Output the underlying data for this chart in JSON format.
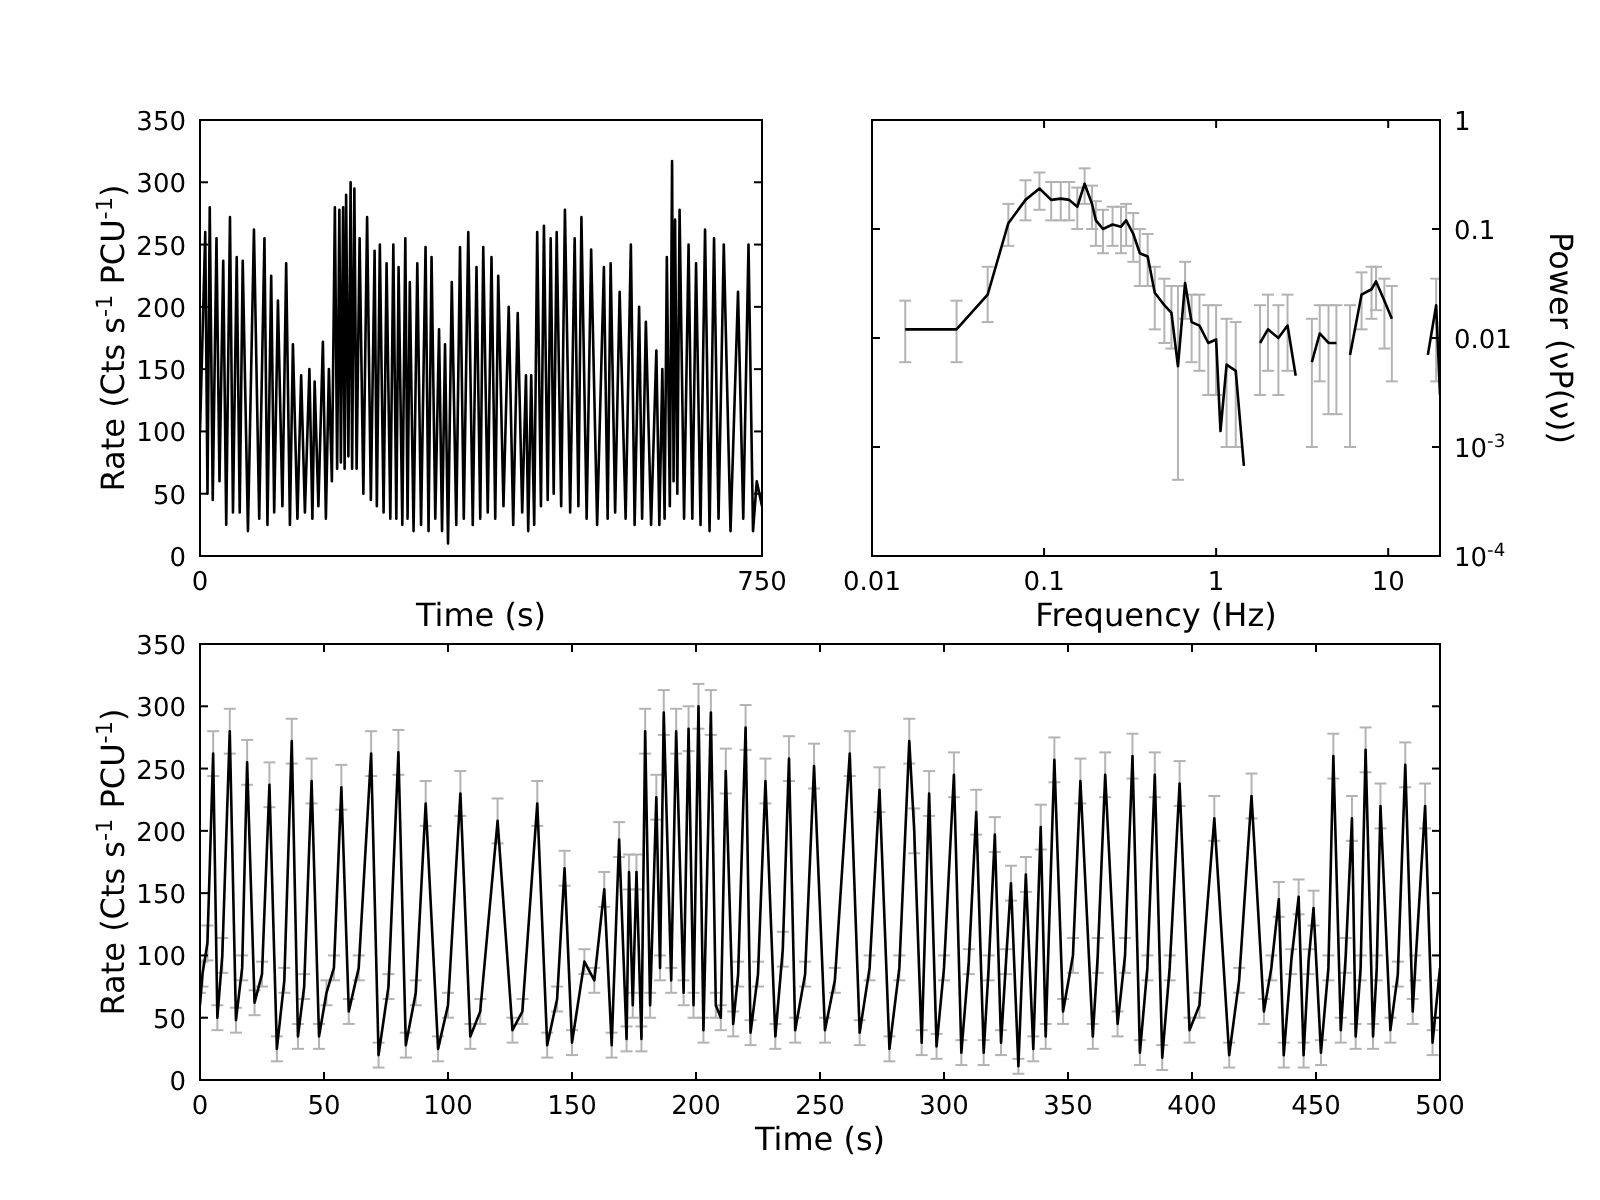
{
  "chart_data": [
    {
      "type": "line",
      "xlabel": "Time (s)",
      "ylabel": "Rate (Cts s$^{-1}$ PCU$^{-1}$)",
      "xlim": [
        0,
        750
      ],
      "ylim": [
        0,
        350
      ],
      "xticks": [
        0,
        750
      ],
      "yticks": [
        0,
        50,
        100,
        150,
        200,
        250,
        300,
        350
      ],
      "series": [
        {
          "color": "#000000",
          "x": [
            0,
            7,
            10,
            13,
            17,
            22,
            26,
            31,
            35,
            40,
            44,
            49,
            53,
            57,
            64,
            72,
            79,
            86,
            90,
            95,
            99,
            104,
            110,
            115,
            120,
            124,
            130,
            135,
            140,
            146,
            150,
            153,
            158,
            164,
            168,
            172,
            176,
            180,
            183,
            186,
            188,
            191,
            193,
            195,
            198,
            201,
            203,
            206,
            209,
            213,
            218,
            223,
            228,
            233,
            236,
            240,
            245,
            249,
            254,
            258,
            262,
            265,
            270,
            274,
            277,
            280,
            285,
            290,
            295,
            301,
            305,
            309,
            314,
            319,
            323,
            327,
            331,
            336,
            342,
            347,
            352,
            358,
            364,
            369,
            374,
            378,
            384,
            389,
            394,
            398,
            405,
            412,
            418,
            424,
            430,
            435,
            438,
            442,
            446,
            450,
            455,
            459,
            464,
            468,
            472,
            476,
            482,
            487,
            494,
            500,
            505,
            509,
            516,
            522,
            530,
            539,
            544,
            548,
            554,
            560,
            568,
            575,
            580,
            586,
            590,
            595,
            602,
            609,
            613,
            617,
            620,
            623,
            627,
            630,
            632,
            634,
            637,
            640,
            646,
            652,
            657,
            662,
            668,
            674,
            680,
            686,
            692,
            699,
            708,
            718,
            725,
            732,
            738,
            743,
            750
          ],
          "values": [
            100,
            260,
            50,
            280,
            45,
            255,
            60,
            237,
            25,
            272,
            35,
            240,
            35,
            237,
            20,
            262,
            30,
            255,
            25,
            225,
            35,
            205,
            40,
            235,
            25,
            170,
            30,
            145,
            35,
            150,
            30,
            140,
            40,
            172,
            30,
            150,
            60,
            280,
            70,
            278,
            75,
            280,
            70,
            290,
            80,
            300,
            70,
            295,
            70,
            255,
            50,
            272,
            45,
            245,
            40,
            250,
            35,
            235,
            30,
            250,
            30,
            232,
            25,
            255,
            30,
            220,
            20,
            235,
            25,
            248,
            20,
            240,
            30,
            182,
            20,
            170,
            10,
            220,
            25,
            248,
            30,
            260,
            25,
            232,
            30,
            248,
            35,
            240,
            30,
            225,
            40,
            200,
            25,
            195,
            35,
            145,
            20,
            145,
            25,
            260,
            40,
            265,
            45,
            255,
            50,
            260,
            40,
            278,
            35,
            255,
            40,
            272,
            30,
            246,
            25,
            232,
            30,
            235,
            35,
            212,
            30,
            250,
            25,
            200,
            30,
            188,
            25,
            165,
            25,
            150,
            30,
            240,
            40,
            317,
            60,
            270,
            50,
            278,
            30,
            250,
            30,
            235,
            25,
            262,
            20,
            255,
            30,
            250,
            20,
            212,
            30,
            250,
            20,
            60,
            40
          ]
        }
      ]
    },
    {
      "type": "line",
      "xlabel": "Frequency (Hz)",
      "ylabel": "Power (νP(ν))",
      "log": "xy",
      "xlim": [
        0.01,
        20
      ],
      "ylim": [
        0.0001,
        1
      ],
      "xticks": [
        0.01,
        0.1,
        1,
        10
      ],
      "yticks": [
        {
          "value": 0.0001,
          "label": "10$^{-4}$"
        },
        {
          "value": 0.001,
          "label": "10$^{-3}$"
        },
        0.01,
        0.1,
        1
      ],
      "series": [
        {
          "color": "#000000",
          "x": [
            0.0156,
            0.031,
            0.047,
            0.062,
            0.078,
            0.094,
            0.11,
            0.125,
            0.14,
            0.156,
            0.172,
            0.19,
            0.2,
            0.22,
            0.25,
            0.28,
            0.3,
            0.33,
            0.36,
            0.4,
            0.44,
            0.5,
            0.55,
            0.6,
            0.66,
            0.72,
            0.8,
            0.9,
            1.0,
            1.06,
            1.15,
            1.3,
            1.45,
            1.6,
            1.8,
            2.0,
            2.3,
            2.6,
            2.9,
            3.2,
            3.6,
            4.0,
            4.5,
            5.0,
            5.5,
            6.0,
            7.0,
            8.0,
            8.5,
            9.5,
            10.5,
            11.5,
            13,
            15,
            17,
            19,
            20
          ],
          "values": [
            0.012,
            0.012,
            0.025,
            0.113,
            0.185,
            0.235,
            0.185,
            0.19,
            0.185,
            0.16,
            0.26,
            0.17,
            0.12,
            0.1,
            0.11,
            0.105,
            0.12,
            0.09,
            0.06,
            0.056,
            0.026,
            0.02,
            0.017,
            0.0055,
            0.032,
            0.014,
            0.013,
            0.009,
            0.0097,
            0.0014,
            0.0057,
            0.005,
            0.00067,
            null,
            0.009,
            0.012,
            0.01,
            0.013,
            0.0045,
            null,
            0.006,
            0.011,
            0.009,
            0.009,
            null,
            0.007,
            0.025,
            0.028,
            0.033,
            0.022,
            0.015,
            null,
            null,
            null,
            0.007,
            0.02,
            0.003
          ],
          "errors": [
            [
              0.006,
              0.022
            ],
            [
              0.006,
              0.022
            ],
            [
              0.014,
              0.045
            ],
            [
              0.07,
              0.17
            ],
            [
              0.12,
              0.28
            ],
            [
              0.15,
              0.33
            ],
            [
              0.12,
              0.27
            ],
            [
              0.12,
              0.27
            ],
            [
              0.12,
              0.27
            ],
            [
              0.1,
              0.24
            ],
            [
              0.17,
              0.36
            ],
            [
              0.1,
              0.25
            ],
            [
              0.07,
              0.18
            ],
            [
              0.06,
              0.15
            ],
            [
              0.07,
              0.16
            ],
            [
              0.06,
              0.16
            ],
            [
              0.07,
              0.17
            ],
            [
              0.05,
              0.14
            ],
            [
              0.03,
              0.1
            ],
            [
              0.03,
              0.09
            ],
            [
              0.012,
              0.045
            ],
            [
              0.009,
              0.035
            ],
            [
              0.008,
              0.03
            ],
            [
              0.0005,
              0.03
            ],
            [
              0.015,
              0.05
            ],
            [
              0.006,
              0.025
            ],
            [
              0.005,
              0.025
            ],
            [
              0.003,
              0.02
            ],
            [
              0.003,
              0.02
            ],
            null,
            [
              0.001,
              0.015
            ],
            [
              0.001,
              0.014
            ],
            null,
            null,
            [
              0.003,
              0.02
            ],
            [
              0.005,
              0.025
            ],
            [
              0.003,
              0.02
            ],
            [
              0.005,
              0.025
            ],
            null,
            null,
            [
              0.001,
              0.015
            ],
            [
              0.004,
              0.02
            ],
            [
              0.002,
              0.02
            ],
            [
              0.002,
              0.02
            ],
            null,
            [
              0.001,
              0.02
            ],
            [
              0.012,
              0.04
            ],
            [
              0.015,
              0.045
            ],
            [
              0.018,
              0.045
            ],
            [
              0.008,
              0.035
            ],
            [
              0.004,
              0.03
            ],
            null,
            null,
            null,
            null,
            [
              0.004,
              0.035
            ],
            null
          ]
        }
      ]
    },
    {
      "type": "line",
      "xlabel": "Time (s)",
      "ylabel": "Rate (Cts s$^{-1}$ PCU$^{-1}$)",
      "xlim": [
        0,
        500
      ],
      "ylim": [
        0,
        350
      ],
      "xticks": [
        0,
        50,
        100,
        150,
        200,
        250,
        300,
        350,
        400,
        450,
        500
      ],
      "yticks": [
        0,
        50,
        100,
        150,
        200,
        250,
        300,
        350
      ],
      "series": [
        {
          "color": "#000000",
          "x": [
            0,
            1,
            3,
            5.3,
            7,
            9,
            12,
            14.5,
            17,
            19,
            22,
            25,
            28,
            31,
            34,
            37,
            39.5,
            42,
            45,
            48,
            51,
            54,
            57,
            60,
            64,
            69,
            72,
            76,
            80,
            83,
            87,
            91,
            96,
            100,
            105,
            109,
            113,
            120,
            126,
            130,
            136,
            140,
            144,
            147,
            150,
            155,
            159,
            163,
            166,
            169,
            172,
            173,
            174.5,
            176,
            178,
            179.5,
            181.5,
            184,
            185.5,
            187,
            190,
            192,
            195,
            197,
            199,
            201,
            203,
            206,
            208,
            210,
            212,
            215,
            217,
            220,
            222,
            225,
            228,
            232,
            235,
            237.5,
            240,
            244,
            247.6,
            252,
            256,
            262,
            266,
            270,
            274,
            278,
            282,
            286,
            288,
            291,
            294,
            297,
            300,
            304,
            307,
            310,
            313,
            316,
            318,
            320.5,
            323,
            325,
            327,
            330,
            333,
            336,
            339,
            341,
            344.5,
            348,
            352,
            355,
            360,
            362,
            365,
            370,
            373,
            376,
            379,
            382,
            385,
            388,
            391,
            395,
            399,
            403,
            409,
            415,
            419,
            424,
            429,
            432,
            435,
            437,
            440,
            443,
            445,
            447,
            449,
            452,
            455,
            457,
            460,
            462,
            464.5,
            466,
            468,
            470,
            473,
            474.5,
            476,
            480,
            483,
            486,
            489,
            490,
            494,
            497,
            500
          ],
          "values": [
            60,
            85,
            110,
            262,
            50,
            100,
            280,
            48,
            90,
            255,
            62,
            85,
            237,
            25,
            80,
            272,
            35,
            75,
            240,
            35,
            70,
            90,
            235,
            55,
            90,
            262,
            20,
            75,
            263,
            28,
            70,
            222,
            25,
            60,
            230,
            35,
            55,
            208,
            40,
            55,
            222,
            28,
            65,
            170,
            30,
            95,
            80,
            153,
            28,
            193,
            33,
            167,
            60,
            167,
            33,
            280,
            60,
            227,
            90,
            295,
            80,
            280,
            70,
            282,
            60,
            300,
            40,
            295,
            60,
            50,
            248,
            45,
            85,
            283,
            38,
            85,
            240,
            35,
            105,
            258,
            40,
            85,
            252,
            40,
            80,
            262,
            38,
            90,
            233,
            25,
            90,
            272,
            200,
            30,
            230,
            27,
            90,
            245,
            22,
            95,
            215,
            22,
            90,
            197,
            30,
            95,
            158,
            11,
            165,
            25,
            203,
            35,
            257,
            55,
            100,
            240,
            35,
            100,
            245,
            45,
            100,
            260,
            22,
            90,
            245,
            18,
            90,
            238,
            40,
            60,
            210,
            20,
            80,
            228,
            55,
            90,
            145,
            20,
            95,
            147,
            20,
            95,
            138,
            22,
            90,
            260,
            40,
            100,
            210,
            35,
            90,
            265,
            35,
            90,
            220,
            40,
            85,
            253,
            55,
            90,
            220,
            30,
            90
          ],
          "errors": [
            10,
            10,
            14,
            18,
            10,
            14,
            18,
            10,
            10,
            18,
            10,
            10,
            18,
            10,
            10,
            18,
            10,
            10,
            18,
            10,
            10,
            10,
            18,
            10,
            10,
            18,
            10,
            10,
            18,
            10,
            10,
            18,
            10,
            10,
            18,
            10,
            10,
            18,
            10,
            10,
            18,
            10,
            10,
            14,
            10,
            10,
            10,
            14,
            10,
            14,
            10,
            14,
            10,
            14,
            10,
            18,
            10,
            18,
            10,
            18,
            10,
            18,
            10,
            18,
            10,
            18,
            10,
            18,
            10,
            10,
            18,
            10,
            10,
            18,
            10,
            10,
            18,
            10,
            14,
            18,
            10,
            10,
            18,
            10,
            10,
            18,
            10,
            10,
            18,
            10,
            10,
            18,
            18,
            10,
            18,
            10,
            10,
            18,
            10,
            10,
            18,
            10,
            10,
            14,
            10,
            10,
            14,
            6,
            14,
            10,
            18,
            10,
            18,
            10,
            14,
            18,
            10,
            14,
            18,
            10,
            14,
            18,
            10,
            10,
            18,
            10,
            10,
            18,
            10,
            10,
            18,
            10,
            10,
            18,
            10,
            10,
            14,
            10,
            10,
            14,
            10,
            10,
            14,
            10,
            10,
            18,
            10,
            14,
            18,
            10,
            10,
            18,
            10,
            10,
            18,
            10,
            10,
            18,
            10,
            10,
            18,
            10,
            10
          ]
        }
      ]
    }
  ]
}
